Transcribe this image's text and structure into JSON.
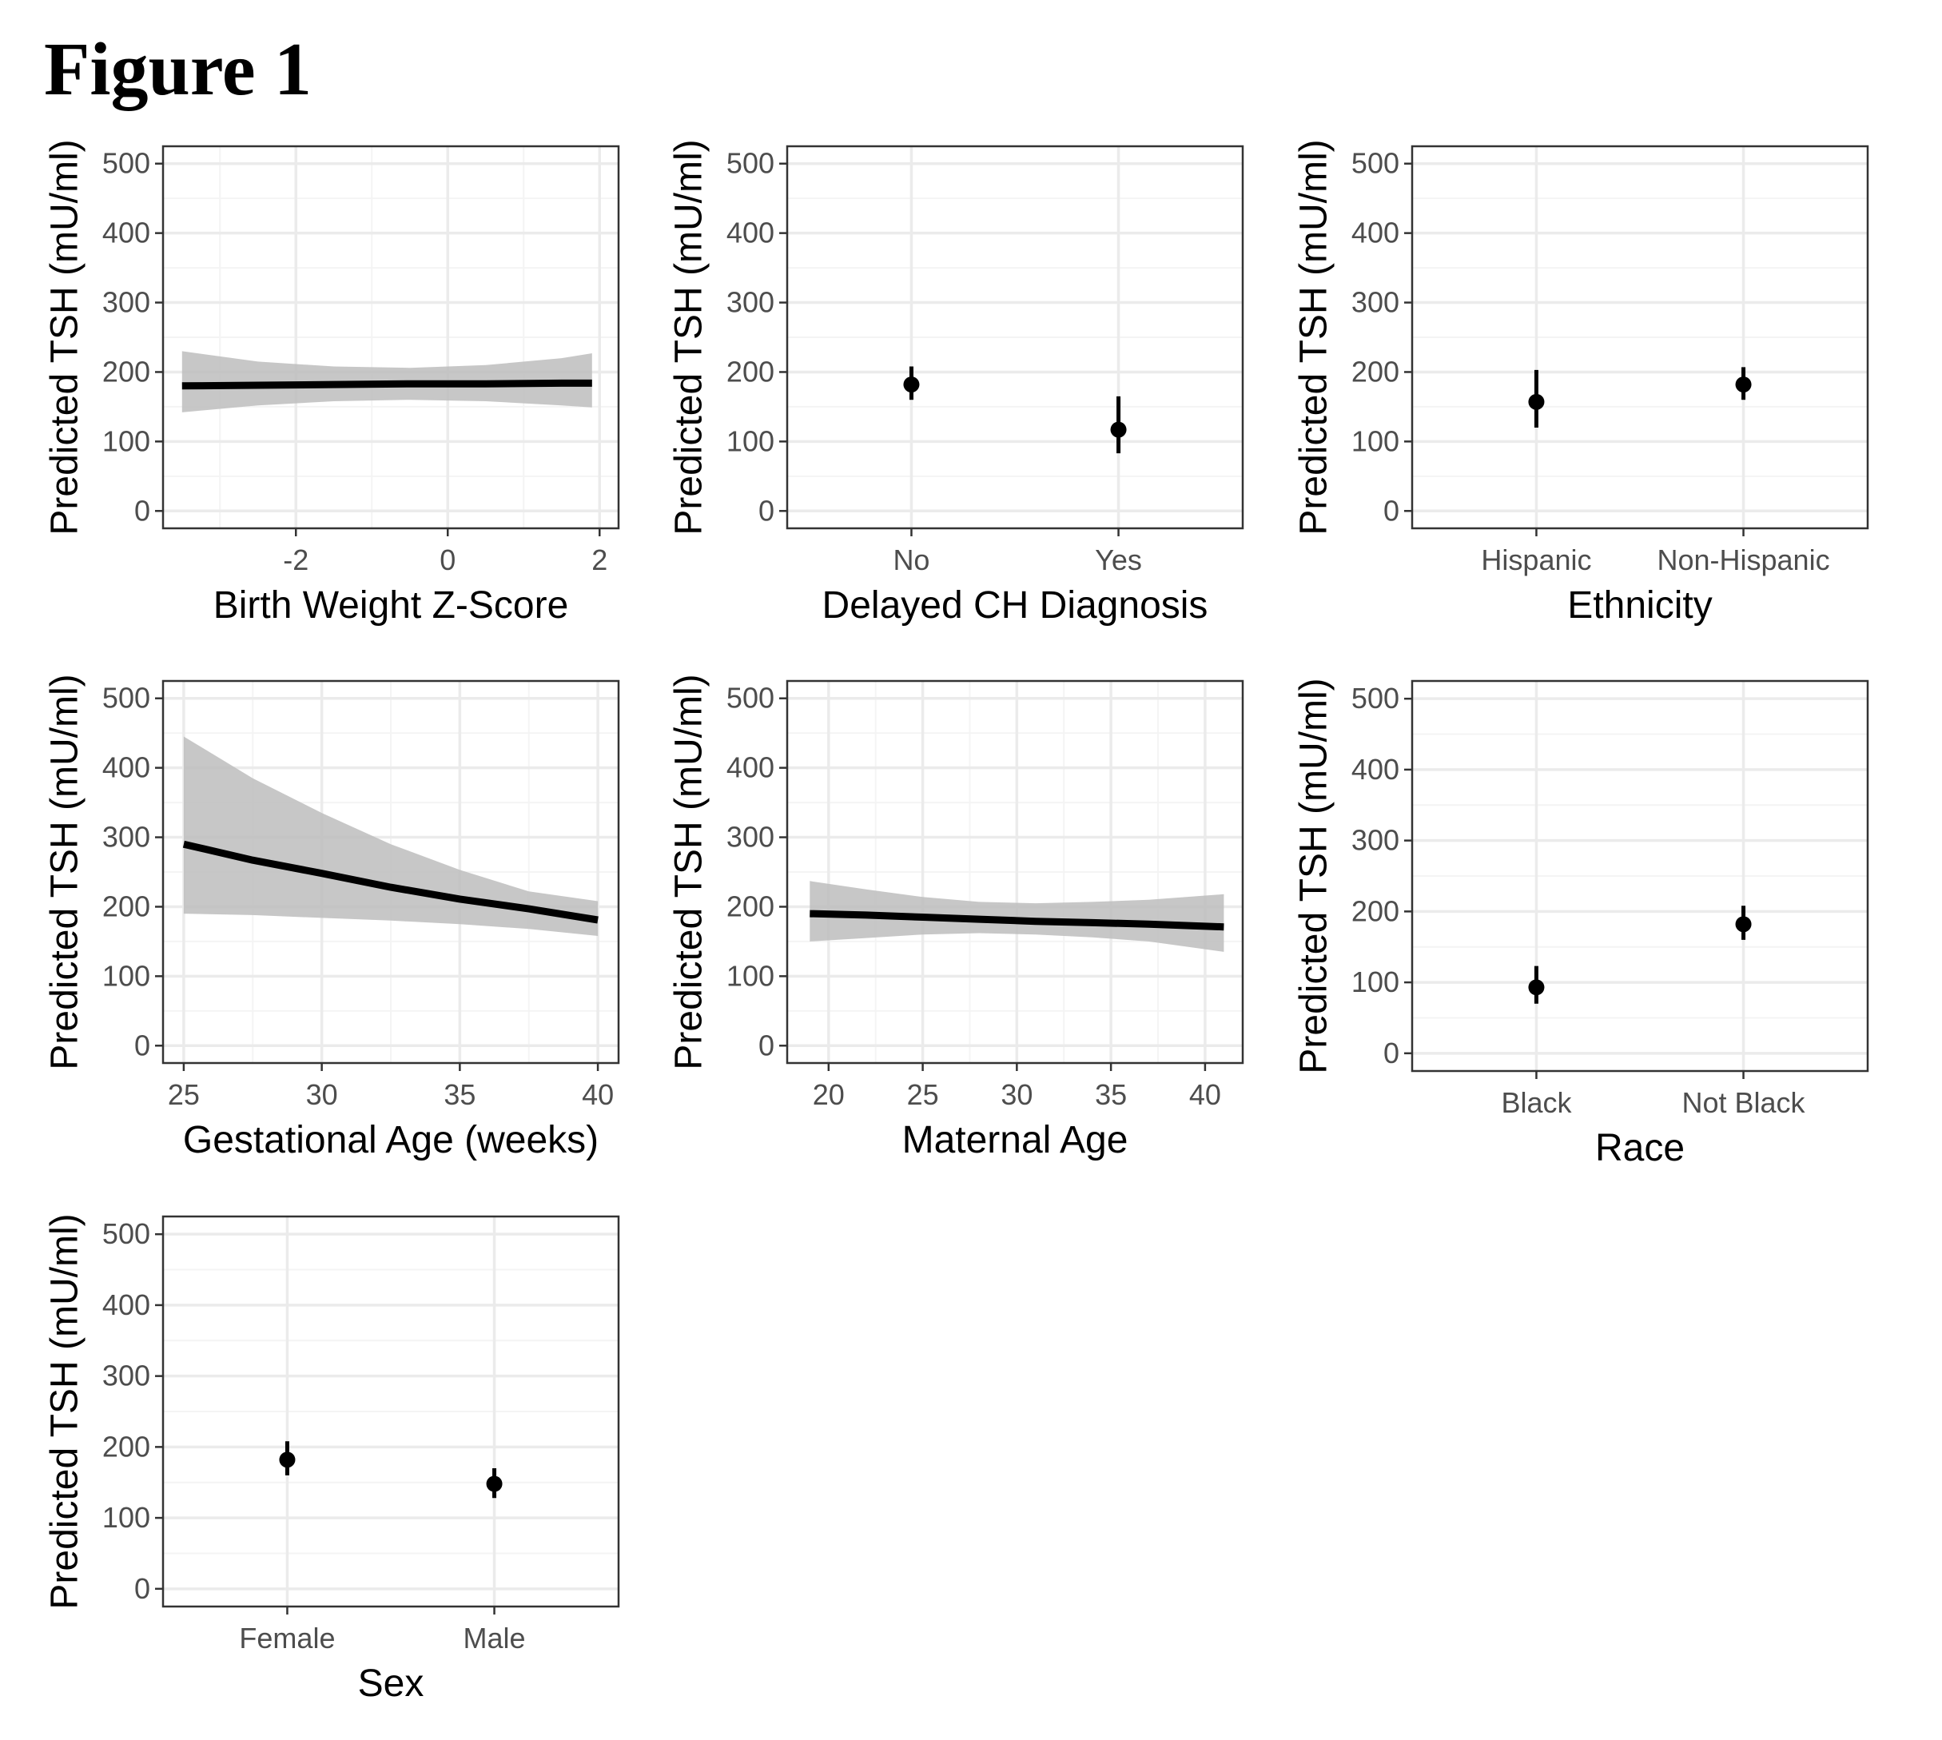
{
  "figure_title": "Figure 1",
  "colors": {
    "line": "#000000",
    "ribbon": "#bdbdbd",
    "grid_major": "#ebebeb",
    "grid_minor": "#f4f4f4",
    "panel_border": "#333333",
    "tick_text": "#4d4d4d"
  },
  "chart_data": [
    {
      "type": "line",
      "title": "",
      "xlabel": "Birth Weight Z-Score",
      "ylabel": "Predicted TSH (mU/ml)",
      "xlim": [
        -3.75,
        2.25
      ],
      "ylim": [
        -25,
        525
      ],
      "xticks": [
        -2,
        0,
        2
      ],
      "xtick_labels": [
        "-2",
        "0",
        "2"
      ],
      "yticks": [
        0,
        100,
        200,
        300,
        400,
        500
      ],
      "ytick_labels": [
        "0",
        "100",
        "200",
        "300",
        "400",
        "500"
      ],
      "grid": true,
      "series": [
        {
          "x": [
            -3.5,
            -2.5,
            -1.5,
            -0.5,
            0.5,
            1.5,
            1.9
          ],
          "y": [
            180,
            181,
            182,
            183,
            183,
            184,
            184
          ],
          "lower": [
            142,
            152,
            158,
            160,
            158,
            152,
            149
          ],
          "upper": [
            230,
            215,
            208,
            206,
            210,
            220,
            227
          ]
        }
      ]
    },
    {
      "type": "scatter",
      "title": "",
      "xlabel": "Delayed CH Diagnosis",
      "ylabel": "Predicted TSH (mU/ml)",
      "ylim": [
        -25,
        525
      ],
      "categories": [
        "No",
        "Yes"
      ],
      "yticks": [
        0,
        100,
        200,
        300,
        400,
        500
      ],
      "ytick_labels": [
        "0",
        "100",
        "200",
        "300",
        "400",
        "500"
      ],
      "grid": true,
      "values": [
        182,
        117
      ],
      "lower": [
        160,
        83
      ],
      "upper": [
        208,
        165
      ]
    },
    {
      "type": "scatter",
      "title": "",
      "xlabel": "Ethnicity",
      "ylabel": "Predicted TSH (mU/ml)",
      "ylim": [
        -25,
        525
      ],
      "categories": [
        "Hispanic",
        "Non-Hispanic"
      ],
      "yticks": [
        0,
        100,
        200,
        300,
        400,
        500
      ],
      "ytick_labels": [
        "0",
        "100",
        "200",
        "300",
        "400",
        "500"
      ],
      "grid": true,
      "values": [
        157,
        182
      ],
      "lower": [
        120,
        160
      ],
      "upper": [
        203,
        207
      ]
    },
    {
      "type": "line",
      "title": "",
      "xlabel": "Gestational Age (weeks)",
      "ylabel": "Predicted TSH (mU/ml)",
      "xlim": [
        24.25,
        40.75
      ],
      "ylim": [
        -25,
        525
      ],
      "xticks": [
        25,
        30,
        35,
        40
      ],
      "xtick_labels": [
        "25",
        "30",
        "35",
        "40"
      ],
      "yticks": [
        0,
        100,
        200,
        300,
        400,
        500
      ],
      "ytick_labels": [
        "0",
        "100",
        "200",
        "300",
        "400",
        "500"
      ],
      "grid": true,
      "series": [
        {
          "x": [
            25,
            27.5,
            30,
            32.5,
            35,
            37.5,
            40
          ],
          "y": [
            290,
            267,
            248,
            228,
            211,
            197,
            181
          ],
          "lower": [
            190,
            188,
            184,
            180,
            175,
            168,
            158
          ],
          "upper": [
            445,
            385,
            335,
            290,
            253,
            222,
            208
          ]
        }
      ]
    },
    {
      "type": "line",
      "title": "",
      "xlabel": "Maternal Age",
      "ylabel": "Predicted TSH (mU/ml)",
      "xlim": [
        17.8,
        42
      ],
      "ylim": [
        -25,
        525
      ],
      "xticks": [
        20,
        25,
        30,
        35,
        40
      ],
      "xtick_labels": [
        "20",
        "25",
        "30",
        "35",
        "40"
      ],
      "yticks": [
        0,
        100,
        200,
        300,
        400,
        500
      ],
      "ytick_labels": [
        "0",
        "100",
        "200",
        "300",
        "400",
        "500"
      ],
      "grid": true,
      "series": [
        {
          "x": [
            19,
            22,
            25,
            28,
            31,
            34,
            37,
            41
          ],
          "y": [
            190,
            188,
            185,
            182,
            179,
            177,
            175,
            171
          ],
          "lower": [
            150,
            155,
            160,
            162,
            160,
            156,
            150,
            135
          ],
          "upper": [
            237,
            225,
            214,
            207,
            205,
            207,
            210,
            218
          ]
        }
      ]
    },
    {
      "type": "scatter",
      "title": "",
      "xlabel": "Race",
      "ylabel": "Predicted TSH (mU/ml)",
      "ylim": [
        -25,
        525
      ],
      "categories": [
        "Black",
        "Not Black"
      ],
      "yticks": [
        0,
        100,
        200,
        300,
        400,
        500
      ],
      "ytick_labels": [
        "0",
        "100",
        "200",
        "300",
        "400",
        "500"
      ],
      "grid": true,
      "values": [
        93,
        182
      ],
      "lower": [
        70,
        160
      ],
      "upper": [
        123,
        208
      ]
    },
    {
      "type": "scatter",
      "title": "",
      "xlabel": "Sex",
      "ylabel": "Predicted TSH (mU/ml)",
      "ylim": [
        -25,
        525
      ],
      "categories": [
        "Female",
        "Male"
      ],
      "yticks": [
        0,
        100,
        200,
        300,
        400,
        500
      ],
      "ytick_labels": [
        "0",
        "100",
        "200",
        "300",
        "400",
        "500"
      ],
      "grid": true,
      "values": [
        182,
        148
      ],
      "lower": [
        160,
        128
      ],
      "upper": [
        208,
        170
      ]
    }
  ]
}
